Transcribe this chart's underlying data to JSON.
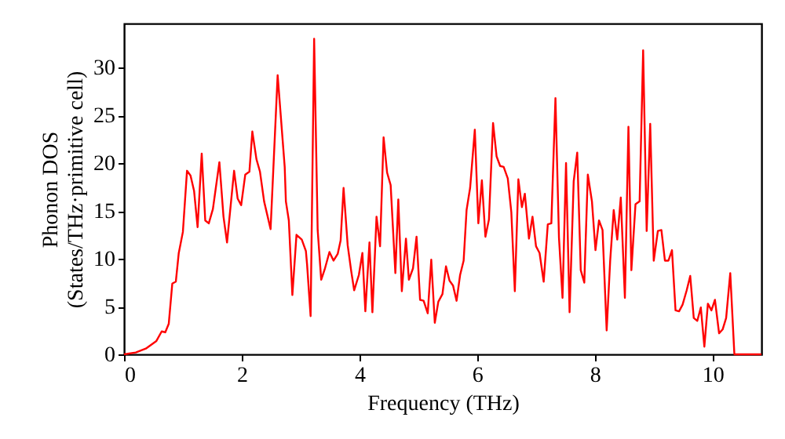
{
  "chart_data": {
    "type": "line",
    "xlabel": "Frequency (THz)",
    "ylabel": "Phonon DOS\n(States/THz·primitive cell)",
    "xlim": [
      0,
      10.83
    ],
    "ylim": [
      0,
      34.6
    ],
    "xticks": [
      0,
      2,
      4,
      6,
      8,
      10
    ],
    "yticks": [
      0,
      5,
      10,
      15,
      20,
      25,
      30
    ],
    "grid": false,
    "series": [
      {
        "color": "#ff0000",
        "x": [
          0,
          0.2,
          0.37,
          0.55,
          0.64,
          0.7,
          0.76,
          0.82,
          0.88,
          0.93,
          1.0,
          1.07,
          1.13,
          1.19,
          1.25,
          1.32,
          1.38,
          1.44,
          1.51,
          1.62,
          1.69,
          1.75,
          1.87,
          1.93,
          1.99,
          2.06,
          2.13,
          2.18,
          2.25,
          2.31,
          2.38,
          2.49,
          2.61,
          2.73,
          2.75,
          2.8,
          2.86,
          2.93,
          3.02,
          3.09,
          3.11,
          3.17,
          3.23,
          3.29,
          3.35,
          3.41,
          3.49,
          3.56,
          3.63,
          3.68,
          3.73,
          3.8,
          3.86,
          3.91,
          3.99,
          4.05,
          4.1,
          4.17,
          4.22,
          4.29,
          4.35,
          4.41,
          4.47,
          4.53,
          4.61,
          4.66,
          4.72,
          4.79,
          4.84,
          4.91,
          4.97,
          5.03,
          5.09,
          5.16,
          5.22,
          5.28,
          5.34,
          5.41,
          5.47,
          5.53,
          5.59,
          5.65,
          5.71,
          5.77,
          5.82,
          5.88,
          5.96,
          6.02,
          6.08,
          6.14,
          6.2,
          6.27,
          6.33,
          6.39,
          6.45,
          6.52,
          6.58,
          6.64,
          6.7,
          6.76,
          6.81,
          6.88,
          6.94,
          7.0,
          7.06,
          7.13,
          7.2,
          7.26,
          7.33,
          7.39,
          7.45,
          7.51,
          7.57,
          7.64,
          7.7,
          7.76,
          7.82,
          7.88,
          7.95,
          8.01,
          8.07,
          8.13,
          8.2,
          8.26,
          8.32,
          8.38,
          8.44,
          8.51,
          8.57,
          8.62,
          8.69,
          8.76,
          8.82,
          8.88,
          8.94,
          9.0,
          9.07,
          9.13,
          9.19,
          9.25,
          9.31,
          9.37,
          9.43,
          9.49,
          9.56,
          9.62,
          9.68,
          9.74,
          9.8,
          9.86,
          9.92,
          9.98,
          10.04,
          10.11,
          10.17,
          10.23,
          10.3,
          10.37,
          10.83
        ],
        "values": [
          0,
          0.2,
          0.6,
          1.4,
          2.4,
          2.3,
          3.2,
          7.4,
          7.6,
          10.6,
          12.8,
          19.2,
          18.7,
          17.1,
          13.3,
          21.0,
          14.0,
          13.7,
          15.2,
          20.1,
          14.4,
          11.7,
          19.2,
          16.3,
          15.6,
          18.8,
          19.1,
          23.3,
          20.4,
          19.1,
          16.0,
          13.1,
          29.2,
          19.6,
          16.0,
          14.0,
          6.2,
          12.5,
          12.0,
          10.8,
          9.4,
          4.0,
          33.0,
          13.0,
          7.8,
          8.9,
          10.7,
          9.8,
          10.5,
          11.9,
          17.4,
          11.4,
          8.7,
          6.7,
          8.3,
          10.6,
          4.5,
          11.7,
          4.4,
          14.4,
          11.3,
          22.7,
          19.0,
          17.7,
          8.5,
          16.2,
          6.6,
          12.1,
          7.8,
          9.0,
          12.3,
          5.7,
          5.6,
          4.3,
          9.9,
          3.3,
          5.5,
          6.3,
          9.2,
          7.7,
          7.2,
          5.6,
          8.3,
          9.8,
          15.1,
          17.4,
          23.5,
          13.7,
          18.2,
          12.3,
          14.1,
          24.2,
          20.7,
          19.7,
          19.6,
          18.4,
          14.9,
          6.6,
          18.3,
          15.4,
          16.8,
          12.1,
          14.4,
          11.3,
          10.6,
          7.6,
          13.6,
          13.7,
          26.8,
          12.2,
          5.9,
          20.0,
          4.4,
          18.1,
          21.1,
          8.8,
          7.5,
          18.8,
          16.0,
          10.9,
          14.0,
          13.0,
          2.5,
          9.8,
          15.1,
          12.0,
          16.4,
          5.9,
          23.8,
          8.8,
          15.7,
          16.0,
          31.8,
          12.9,
          24.1,
          9.8,
          12.9,
          13.0,
          9.8,
          9.8,
          10.9,
          4.6,
          4.5,
          5.2,
          6.7,
          8.2,
          3.8,
          3.5,
          4.9,
          0.8,
          5.3,
          4.6,
          5.7,
          2.2,
          2.6,
          3.8,
          8.5,
          0,
          0
        ]
      }
    ]
  }
}
